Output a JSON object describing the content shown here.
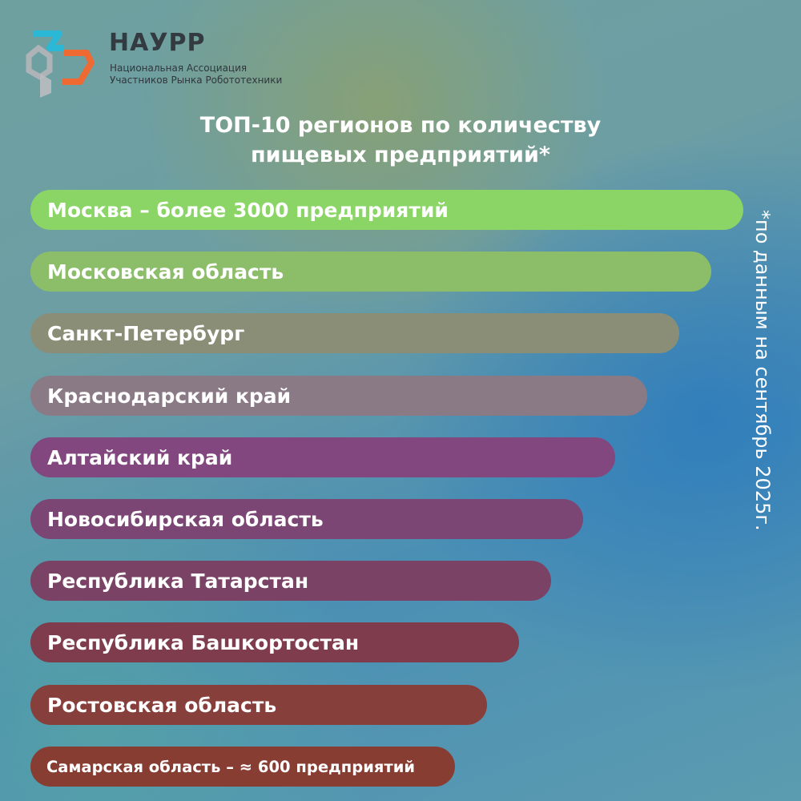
{
  "brand": {
    "name": "НАУРР",
    "subtitle_line1": "Национальная Ассоциация",
    "subtitle_line2": "Участников Рынка Робототехники"
  },
  "note": "*по данным на сентябрь 2025г.",
  "colors": {
    "logo_teal": "#2bb7d6",
    "logo_orange": "#ee6a32",
    "logo_gray": "#aeb3b8"
  },
  "chart_data": {
    "type": "bar",
    "title_line1": "ТОП-10 регионов по количеству",
    "title_line2": "пищевых предприятий*",
    "orientation": "horizontal",
    "categories": [
      "Москва – более 3000 предприятий",
      "Московская область",
      "Санкт-Петербург",
      "Краснодарский край",
      "Алтайский край",
      "Новосибирская область",
      "Республика Татарстан",
      "Республика Башкортостан",
      "Ростовская область",
      "Самарская область – ≈ 600 предприятий"
    ],
    "values": [
      10,
      9,
      8,
      7,
      6,
      5,
      4,
      3,
      2,
      1
    ],
    "bar_colors": [
      "#8ad565",
      "#8cbe6a",
      "#8a8e77",
      "#8a7a85",
      "#82477e",
      "#7c4674",
      "#7a4365",
      "#7e3c4d",
      "#873f3c",
      "#883d33"
    ]
  }
}
